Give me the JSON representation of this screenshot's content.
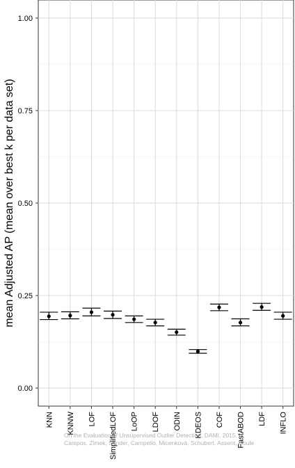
{
  "chart_data": {
    "type": "scatter",
    "subtype": "point-with-errorbars",
    "ylabel": "mean Adjusted AP (mean over best k per data set)",
    "xlabel": "",
    "ylim": [
      -0.05,
      1.05
    ],
    "yticks": [
      0.0,
      0.25,
      0.5,
      0.75,
      1.0
    ],
    "ytick_labels": [
      "0.00",
      "0.25",
      "0.50",
      "0.75",
      "1.00"
    ],
    "grid": true,
    "categories": [
      "KNN",
      "KNNW",
      "LOF",
      "SimplifiedLOF",
      "LoOP",
      "LDOF",
      "ODIN",
      "KDEOS",
      "COF",
      "FastABOD",
      "LDF",
      "INFLO"
    ],
    "means": [
      0.194,
      0.196,
      0.205,
      0.198,
      0.186,
      0.177,
      0.151,
      0.099,
      0.218,
      0.177,
      0.219,
      0.195
    ],
    "lower": [
      0.185,
      0.187,
      0.195,
      0.188,
      0.177,
      0.168,
      0.143,
      0.094,
      0.209,
      0.168,
      0.21,
      0.186
    ],
    "upper": [
      0.205,
      0.206,
      0.216,
      0.208,
      0.195,
      0.186,
      0.159,
      0.104,
      0.227,
      0.187,
      0.229,
      0.205
    ]
  },
  "watermark": {
    "line1": "On the Evaluation of Unsupervised Outlier Detection, DAMI, 2015.",
    "line2": "Campos, Zimek, Sander, Campello, Micenková, Schubert, Assent, Houle"
  }
}
